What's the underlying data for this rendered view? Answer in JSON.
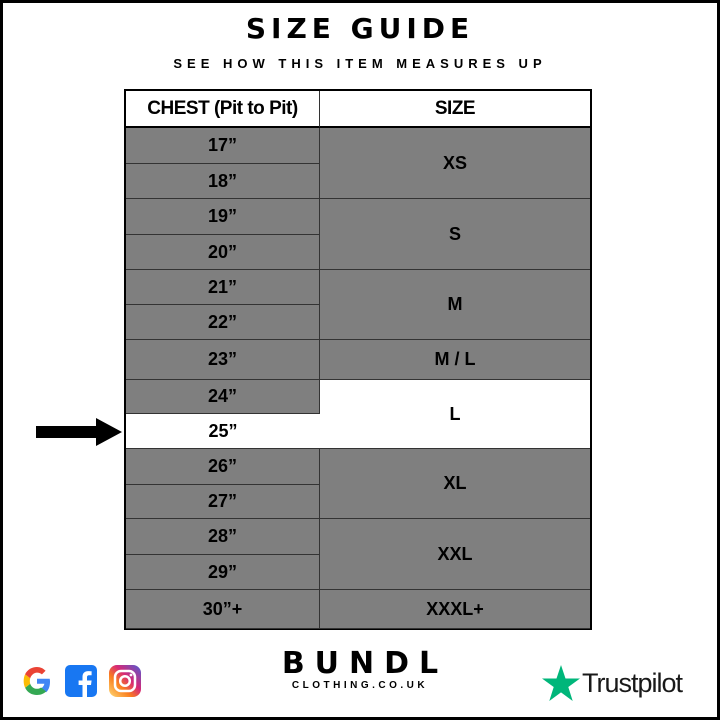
{
  "title": "SIZE GUIDE",
  "subtitle": "SEE HOW THIS ITEM MEASURES UP",
  "table": {
    "headers": [
      "CHEST (Pit to Pit)",
      "SIZE"
    ],
    "chest": [
      "17”",
      "18”",
      "19”",
      "20”",
      "21”",
      "22”",
      "23”",
      "24”",
      "25”",
      "26”",
      "27”",
      "28”",
      "29”",
      "30”+"
    ],
    "sizes": [
      {
        "label": "XS",
        "rows": [
          0,
          1
        ]
      },
      {
        "label": "S",
        "rows": [
          2,
          3
        ]
      },
      {
        "label": "M",
        "rows": [
          4,
          5
        ]
      },
      {
        "label": "M / L",
        "rows": [
          6,
          6
        ]
      },
      {
        "label": "L",
        "rows": [
          7,
          8
        ]
      },
      {
        "label": "XL",
        "rows": [
          9,
          10
        ]
      },
      {
        "label": "XXL",
        "rows": [
          11,
          12
        ]
      },
      {
        "label": "XXXL+",
        "rows": [
          13,
          13
        ]
      }
    ],
    "highlighted_chest": "25”",
    "highlighted_size": "L"
  },
  "colors": {
    "cell": "#7f7f7f",
    "highlight": "#ffffff",
    "trustpilot_star": "#00b67a"
  },
  "footer": {
    "icons": [
      "google-icon",
      "facebook-icon",
      "instagram-icon"
    ],
    "brand": "BUNDL",
    "brand_sub": "CLOTHING.CO.UK",
    "trustpilot": "Trustpilot"
  }
}
